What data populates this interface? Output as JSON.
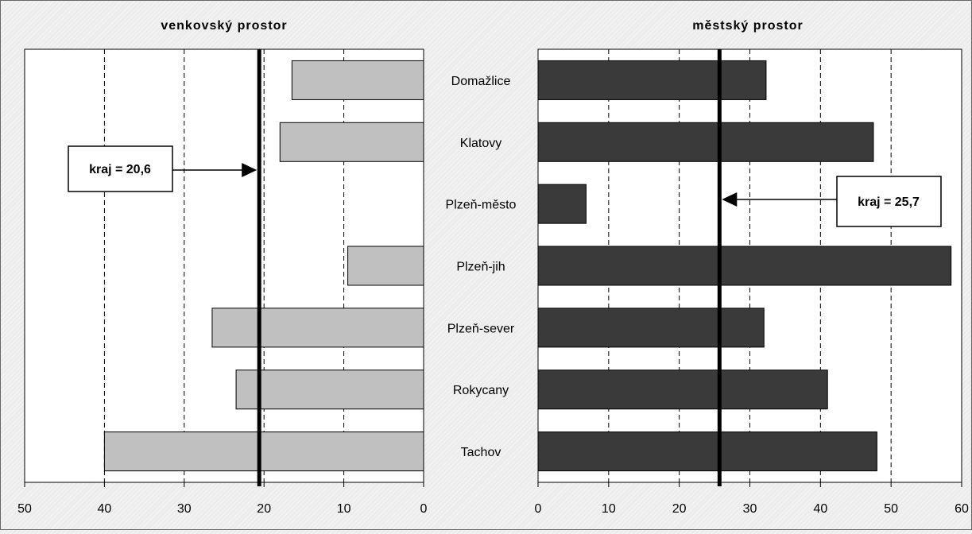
{
  "chart_data": {
    "type": "bar",
    "orientation": "horizontal",
    "grid": true,
    "categories": [
      "Domažlice",
      "Klatovy",
      "Plzeň-město",
      "Plzeň-jih",
      "Plzeň-sever",
      "Rokycany",
      "Tachov"
    ],
    "panels": [
      {
        "title": "venkovský prostor",
        "xlim": [
          0,
          50
        ],
        "direction": "reversed",
        "ticks": [
          "50",
          "40",
          "30",
          "20",
          "10",
          "0"
        ],
        "bar_color": "#c0c0c0",
        "series": [
          {
            "values": [
              16.5,
              18,
              null,
              9.5,
              26.5,
              23.5,
              40
            ]
          }
        ],
        "reference": {
          "value": 20.6,
          "label": "kraj = 20,6"
        }
      },
      {
        "title": "městský prostor",
        "xlim": [
          0,
          60
        ],
        "direction": "normal",
        "ticks": [
          "0",
          "10",
          "20",
          "30",
          "40",
          "50",
          "60"
        ],
        "bar_color": "#3a3a3a",
        "series": [
          {
            "values": [
              32.3,
              47.5,
              6.8,
              58.5,
              32,
              41,
              48
            ]
          }
        ],
        "reference": {
          "value": 25.7,
          "label": "kraj = 25,7"
        }
      }
    ]
  }
}
